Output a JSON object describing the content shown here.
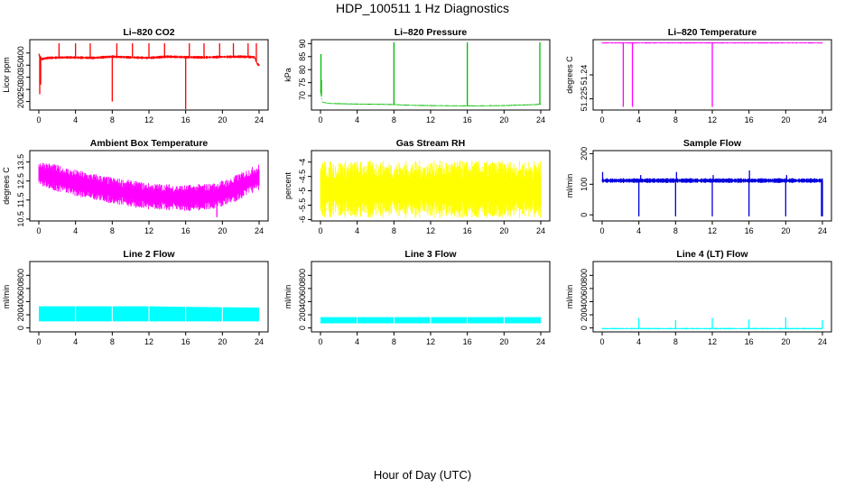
{
  "title": "HDP_100511  1 Hz Diagnostics",
  "xlabel": "Hour of Day (UTC)",
  "chart_data": [
    {
      "type": "line",
      "title": "Li–820 CO2",
      "ylabel": "Licor ppm",
      "color": "#ff0000",
      "xlim": [
        0,
        24
      ],
      "ylim": [
        165,
        455
      ],
      "xticks": [
        0,
        4,
        8,
        12,
        16,
        20,
        24
      ],
      "yticks": [
        200,
        250,
        300,
        350,
        400
      ],
      "series": [
        {
          "base": [
            [
              0,
              395
            ],
            [
              0.3,
              375
            ],
            [
              1,
              380
            ],
            [
              3,
              382
            ],
            [
              6,
              380
            ],
            [
              8,
              385
            ],
            [
              10,
              382
            ],
            [
              12,
              380
            ],
            [
              14,
              385
            ],
            [
              16,
              383
            ],
            [
              18,
              382
            ],
            [
              20,
              384
            ],
            [
              22,
              385
            ],
            [
              23.5,
              383
            ],
            [
              23.8,
              355
            ],
            [
              24,
              350
            ]
          ],
          "noise": 6,
          "spikes": [
            [
              0.1,
              230
            ],
            [
              0.2,
              270
            ],
            [
              2.2,
              440
            ],
            [
              4,
              440
            ],
            [
              5.6,
              440
            ],
            [
              8,
              200
            ],
            [
              8.5,
              440
            ],
            [
              10.2,
              440
            ],
            [
              12,
              440
            ],
            [
              13.7,
              440
            ],
            [
              16,
              165
            ],
            [
              16.4,
              440
            ],
            [
              18,
              440
            ],
            [
              19.7,
              440
            ],
            [
              21.2,
              440
            ],
            [
              22.8,
              440
            ],
            [
              23.7,
              440
            ]
          ]
        }
      ]
    },
    {
      "type": "line",
      "title": "Li–820 Pressure",
      "ylabel": "kPa",
      "color": "#00bb00",
      "xlim": [
        0,
        24
      ],
      "ylim": [
        64.5,
        91.5
      ],
      "xticks": [
        0,
        4,
        8,
        12,
        16,
        20,
        24
      ],
      "yticks": [
        70,
        75,
        80,
        85,
        90
      ],
      "series": [
        {
          "base": [
            [
              0,
              72
            ],
            [
              0.2,
              67.5
            ],
            [
              1,
              67
            ],
            [
              4,
              66.8
            ],
            [
              8,
              66.6
            ],
            [
              10,
              66.3
            ],
            [
              12,
              66.2
            ],
            [
              16,
              66.1
            ],
            [
              20,
              66.2
            ],
            [
              23.5,
              66.6
            ],
            [
              24,
              66.8
            ]
          ],
          "noise": 0.2,
          "spikes": [
            [
              0.05,
              86
            ],
            [
              0.1,
              76
            ],
            [
              8,
              90.5
            ],
            [
              16,
              90.5
            ],
            [
              23.9,
              90.5
            ]
          ]
        }
      ]
    },
    {
      "type": "line",
      "title": "Li–820 Temperature",
      "ylabel": "degrees C",
      "color": "#ff00ff",
      "xlim": [
        0,
        24
      ],
      "ylim": [
        51.218,
        51.262
      ],
      "xticks": [
        0,
        4,
        8,
        12,
        16,
        20,
        24
      ],
      "yticks": [
        51.225,
        51.24
      ],
      "series": [
        {
          "base": [
            [
              0,
              51.26
            ],
            [
              24,
              51.26
            ]
          ],
          "noise": 0.0004,
          "spikes": [
            [
              2.3,
              51.22
            ],
            [
              3.3,
              51.22
            ],
            [
              12,
              51.22
            ]
          ]
        }
      ]
    },
    {
      "type": "line",
      "title": "Ambient Box Temperature",
      "ylabel": "degrees C",
      "color": "#ff00ff",
      "xlim": [
        0,
        24
      ],
      "ylim": [
        10.4,
        14.1
      ],
      "xticks": [
        0,
        4,
        8,
        12,
        16,
        20,
        24
      ],
      "yticks": [
        10.5,
        11.5,
        12.5,
        13.5
      ],
      "series": [
        {
          "base": [
            [
              0,
              12.9
            ],
            [
              4,
              12.4
            ],
            [
              8,
              12.0
            ],
            [
              12,
              11.7
            ],
            [
              16,
              11.6
            ],
            [
              19,
              11.7
            ],
            [
              21,
              12.0
            ],
            [
              23,
              12.5
            ],
            [
              24,
              12.7
            ]
          ],
          "noise": 0.7,
          "spikes": [
            [
              19.4,
              10.6
            ]
          ]
        }
      ]
    },
    {
      "type": "line",
      "title": "Gas Stream RH",
      "ylabel": "percent",
      "color": "#ffff00",
      "xlim": [
        0,
        24
      ],
      "ylim": [
        -6.05,
        -3.6
      ],
      "xticks": [
        0,
        4,
        8,
        12,
        16,
        20,
        24
      ],
      "yticks": [
        -6.0,
        -5.5,
        -5.0,
        -4.5,
        -4.0
      ],
      "series": [
        {
          "base": [
            [
              0,
              -4.95
            ],
            [
              24,
              -4.95
            ]
          ],
          "noise": 1.0,
          "spikes": []
        }
      ]
    },
    {
      "type": "line",
      "title": "Sample Flow",
      "ylabel": "ml/min",
      "color": "#0000dd",
      "xlim": [
        0,
        24
      ],
      "ylim": [
        -20,
        210
      ],
      "xticks": [
        0,
        4,
        8,
        12,
        16,
        20,
        24
      ],
      "yticks": [
        0,
        100,
        200
      ],
      "series": [
        {
          "base": [
            [
              0,
              112
            ],
            [
              24,
              112
            ]
          ],
          "noise": 8,
          "spikes": [
            [
              0.05,
              140
            ],
            [
              4,
              -5
            ],
            [
              4.2,
              130
            ],
            [
              8,
              -5
            ],
            [
              8.1,
              140
            ],
            [
              12,
              -5
            ],
            [
              12.1,
              130
            ],
            [
              16,
              -5
            ],
            [
              16.05,
              145
            ],
            [
              20,
              -5
            ],
            [
              20.1,
              130
            ],
            [
              23.9,
              -5
            ],
            [
              24,
              -5
            ]
          ]
        }
      ]
    },
    {
      "type": "line",
      "title": "Line 2 Flow",
      "ylabel": "ml/min",
      "color": "#00ffff",
      "xlim": [
        0,
        24
      ],
      "ylim": [
        -60,
        1010
      ],
      "xticks": [
        0,
        4,
        8,
        12,
        16,
        20,
        24
      ],
      "yticks": [
        0,
        200,
        400,
        600,
        800
      ],
      "series": [
        {
          "band": [
            [
              0,
              100,
              330
            ],
            [
              4,
              100,
              330
            ],
            [
              12,
              100,
              330
            ],
            [
              16,
              100,
              320
            ],
            [
              24,
              100,
              310
            ]
          ],
          "gaps": [
            4,
            8,
            12,
            16,
            20
          ]
        }
      ]
    },
    {
      "type": "line",
      "title": "Line 3 Flow",
      "ylabel": "ml/min",
      "color": "#00ffff",
      "xlim": [
        0,
        24
      ],
      "ylim": [
        -60,
        1010
      ],
      "xticks": [
        0,
        4,
        8,
        12,
        16,
        20,
        24
      ],
      "yticks": [
        0,
        200,
        400,
        600,
        800
      ],
      "series": [
        {
          "band": [
            [
              0,
              70,
              165
            ],
            [
              24,
              70,
              165
            ]
          ],
          "gaps": [
            4,
            8,
            12,
            16,
            20
          ]
        }
      ]
    },
    {
      "type": "line",
      "title": "Line 4 (LT) Flow",
      "ylabel": "ml/min",
      "color": "#00ffff",
      "xlim": [
        0,
        24
      ],
      "ylim": [
        -60,
        1010
      ],
      "xticks": [
        0,
        4,
        8,
        12,
        16,
        20,
        24
      ],
      "yticks": [
        0,
        200,
        400,
        600,
        800
      ],
      "series": [
        {
          "base": [
            [
              0,
              -10
            ],
            [
              24,
              -10
            ]
          ],
          "noise": 12,
          "spikes": [
            [
              4,
              150
            ],
            [
              8,
              120
            ],
            [
              12,
              150
            ],
            [
              16,
              130
            ],
            [
              20,
              160
            ],
            [
              24,
              120
            ]
          ]
        }
      ]
    }
  ]
}
